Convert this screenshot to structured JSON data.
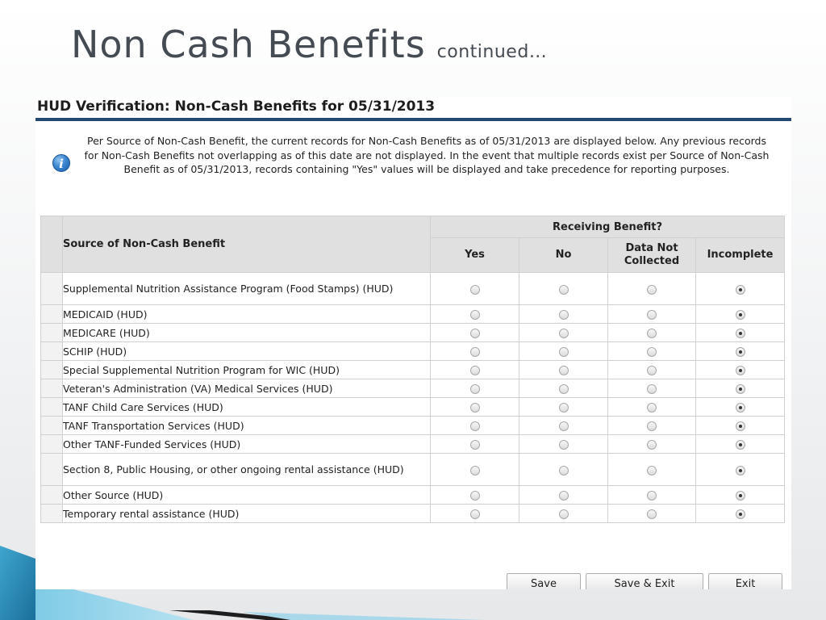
{
  "slide": {
    "title": "Non Cash Benefits",
    "subtitle": "continued…"
  },
  "panel": {
    "title": "HUD Verification: Non-Cash Benefits for 05/31/2013",
    "info_icon": "info-icon",
    "info_text": "Per Source of Non-Cash Benefit, the current records for Non-Cash Benefits as of 05/31/2013 are displayed below. Any previous records for Non-Cash Benefits not overlapping as of this date are not displayed. In the event that multiple records exist per Source of Non-Cash Benefit as of 05/31/2013, records containing \"Yes\" values will be displayed and take precedence for reporting purposes."
  },
  "table": {
    "source_header": "Source of Non-Cash Benefit",
    "group_header": "Receiving Benefit?",
    "options": [
      "Yes",
      "No",
      "Data Not Collected",
      "Incomplete"
    ],
    "rows": [
      {
        "label": "Supplemental Nutrition Assistance Program (Food Stamps) (HUD)",
        "selected": "Incomplete"
      },
      {
        "label": "MEDICAID (HUD)",
        "selected": "Incomplete"
      },
      {
        "label": "MEDICARE (HUD)",
        "selected": "Incomplete"
      },
      {
        "label": "SCHIP (HUD)",
        "selected": "Incomplete"
      },
      {
        "label": "Special Supplemental Nutrition Program for WIC (HUD)",
        "selected": "Incomplete"
      },
      {
        "label": "Veteran's Administration (VA) Medical Services (HUD)",
        "selected": "Incomplete"
      },
      {
        "label": "TANF Child Care Services (HUD)",
        "selected": "Incomplete"
      },
      {
        "label": "TANF Transportation Services (HUD)",
        "selected": "Incomplete"
      },
      {
        "label": "Other TANF-Funded Services (HUD)",
        "selected": "Incomplete"
      },
      {
        "label": "Section 8, Public Housing, or other ongoing rental assistance (HUD)",
        "selected": "Incomplete"
      },
      {
        "label": "Other Source (HUD)",
        "selected": "Incomplete"
      },
      {
        "label": "Temporary rental assistance (HUD)",
        "selected": "Incomplete"
      }
    ]
  },
  "buttons": {
    "save": "Save",
    "save_exit": "Save & Exit",
    "exit": "Exit"
  },
  "colors": {
    "header_rule": "#244a74",
    "title_text": "#444b52",
    "table_header_bg": "#e0e0e0"
  }
}
